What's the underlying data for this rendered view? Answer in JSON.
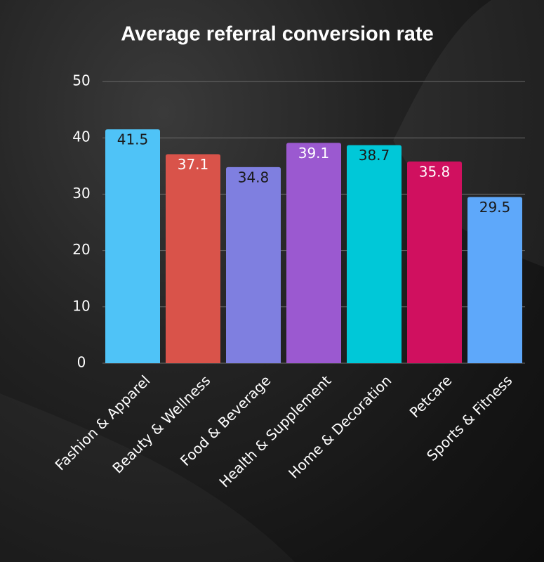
{
  "chart_data": {
    "type": "bar",
    "title": "Average referral conversion rate",
    "categories": [
      "Fashion & Apparel",
      "Beauty & Wellness",
      "Food & Beverage",
      "Health & Supplement",
      "Home & Decoration",
      "Petcare",
      "Sports & Fitness"
    ],
    "values": [
      41.5,
      37.1,
      34.8,
      39.1,
      38.7,
      35.8,
      29.5
    ],
    "colors": [
      "#4fc3f7",
      "#d9534a",
      "#7f7fe0",
      "#9b59d0",
      "#00c8d8",
      "#d0105f",
      "#5ea8fa"
    ],
    "value_label_colors": [
      "#1a1a1a",
      "#ffffff",
      "#1a1a1a",
      "#ffffff",
      "#1a1a1a",
      "#ffffff",
      "#1a1a1a"
    ],
    "ylim": [
      0,
      50
    ],
    "yticks": [
      0,
      10,
      20,
      30,
      40,
      50
    ],
    "grid": true
  }
}
